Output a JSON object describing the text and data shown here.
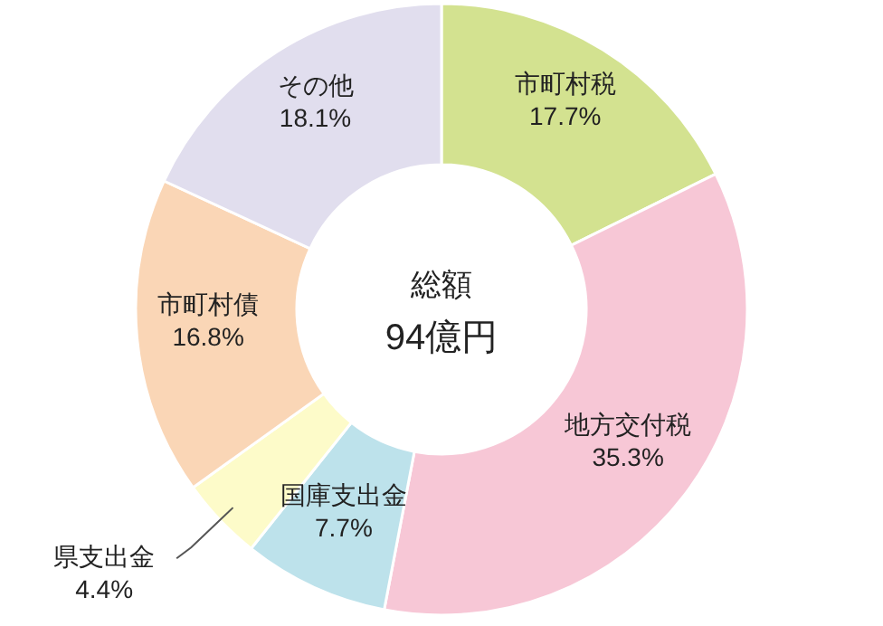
{
  "chart_data": {
    "type": "donut",
    "categories": [
      "市町村税",
      "地方交付税",
      "国庫支出金",
      "県支出金",
      "市町村債",
      "その他"
    ],
    "values": [
      17.7,
      35.3,
      7.7,
      4.4,
      16.8,
      18.1
    ],
    "value_labels": [
      "17.7%",
      "35.3%",
      "7.7%",
      "4.4%",
      "16.8%",
      "18.1%"
    ],
    "colors": [
      "#d3e290",
      "#f7c7d6",
      "#bde2eb",
      "#fdfbc9",
      "#fad6b6",
      "#e1deee"
    ],
    "annotations": [
      "総額",
      "94億円"
    ]
  }
}
